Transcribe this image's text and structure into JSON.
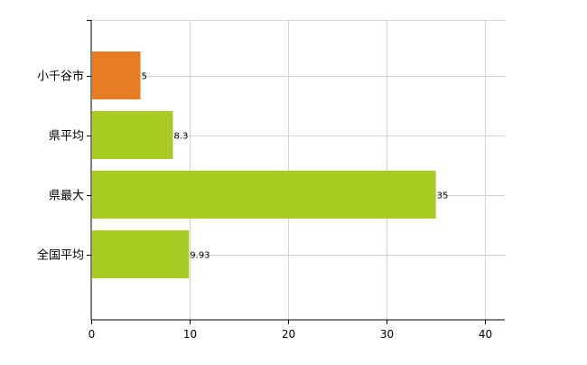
{
  "chart_data": {
    "type": "bar",
    "orientation": "horizontal",
    "title": "",
    "xlabel": "",
    "ylabel": "",
    "categories": [
      "小千谷市",
      "県平均",
      "県最大",
      "全国平均"
    ],
    "values": [
      5,
      8.3,
      35,
      9.93
    ],
    "value_labels": [
      "5",
      "8.3",
      "35",
      "9.93"
    ],
    "bar_colors": [
      "#e87c22",
      "#a8cc22",
      "#a8cc22",
      "#a8cc22"
    ],
    "xlim": [
      0,
      42
    ],
    "x_ticks": [
      0,
      10,
      20,
      30,
      40
    ],
    "x_tick_labels": [
      "0",
      "10",
      "20",
      "30",
      "40"
    ],
    "grid": true,
    "grid_color": "#d3d3d3",
    "legend": "none"
  }
}
